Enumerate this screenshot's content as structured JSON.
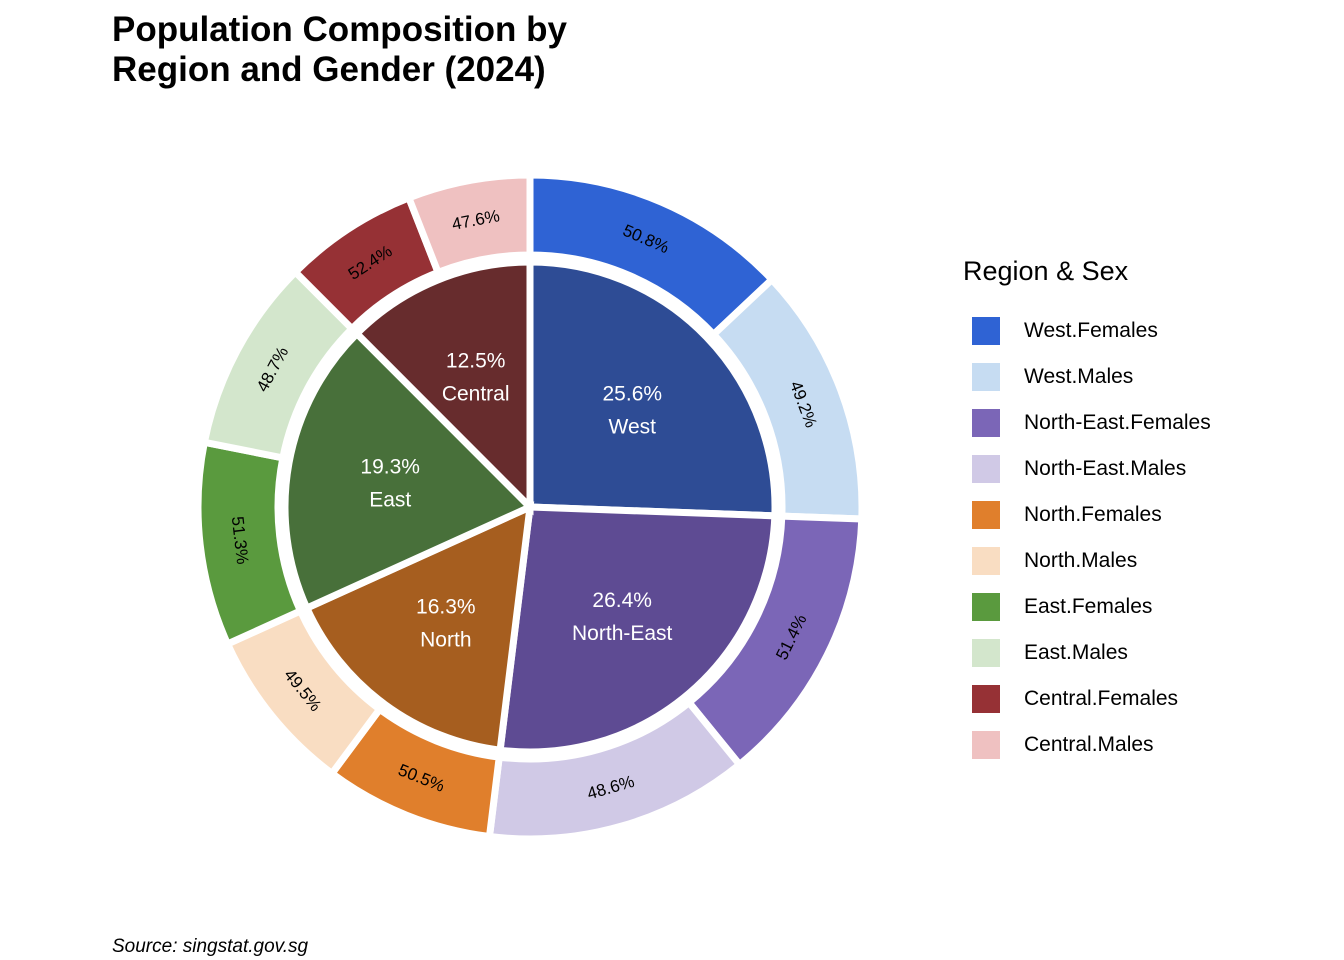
{
  "chart_data": {
    "type": "pie",
    "title": "Population Composition by\nRegion and Gender (2024)",
    "caption": "Source: singstat.gov.sg",
    "legend_title": "Region & Sex",
    "legend_position": "right",
    "inner": [
      {
        "region": "West",
        "share": 25.6,
        "label": "25.6%",
        "color": "#2E4C95"
      },
      {
        "region": "North-East",
        "share": 26.4,
        "label": "26.4%",
        "color": "#5E4B93"
      },
      {
        "region": "North",
        "share": 16.3,
        "label": "16.3%",
        "color": "#A65E1F"
      },
      {
        "region": "East",
        "share": 19.3,
        "label": "19.3%",
        "color": "#48703A"
      },
      {
        "region": "Central",
        "share": 12.5,
        "label": "12.5%",
        "color": "#672C2D"
      }
    ],
    "outer": [
      {
        "name": "West.Females",
        "region": "West",
        "share": 50.8,
        "label": "50.8%",
        "color": "#2F63D4"
      },
      {
        "name": "West.Males",
        "region": "West",
        "share": 49.2,
        "label": "49.2%",
        "color": "#C6DCF2"
      },
      {
        "name": "North-East.Females",
        "region": "North-East",
        "share": 51.4,
        "label": "51.4%",
        "color": "#7B66B7"
      },
      {
        "name": "North-East.Males",
        "region": "North-East",
        "share": 48.6,
        "label": "48.6%",
        "color": "#D0C9E6"
      },
      {
        "name": "North.Females",
        "region": "North",
        "share": 50.5,
        "label": "50.5%",
        "color": "#E07F2C"
      },
      {
        "name": "North.Males",
        "region": "North",
        "share": 49.5,
        "label": "49.5%",
        "color": "#F9DDC2"
      },
      {
        "name": "East.Females",
        "region": "East",
        "share": 51.3,
        "label": "51.3%",
        "color": "#5A9A3E"
      },
      {
        "name": "East.Males",
        "region": "East",
        "share": 48.7,
        "label": "48.7%",
        "color": "#D3E6CC"
      },
      {
        "name": "Central.Females",
        "region": "Central",
        "share": 52.4,
        "label": "52.4%",
        "color": "#963135"
      },
      {
        "name": "Central.Males",
        "region": "Central",
        "share": 47.6,
        "label": "47.6%",
        "color": "#EFC1C1"
      }
    ]
  }
}
